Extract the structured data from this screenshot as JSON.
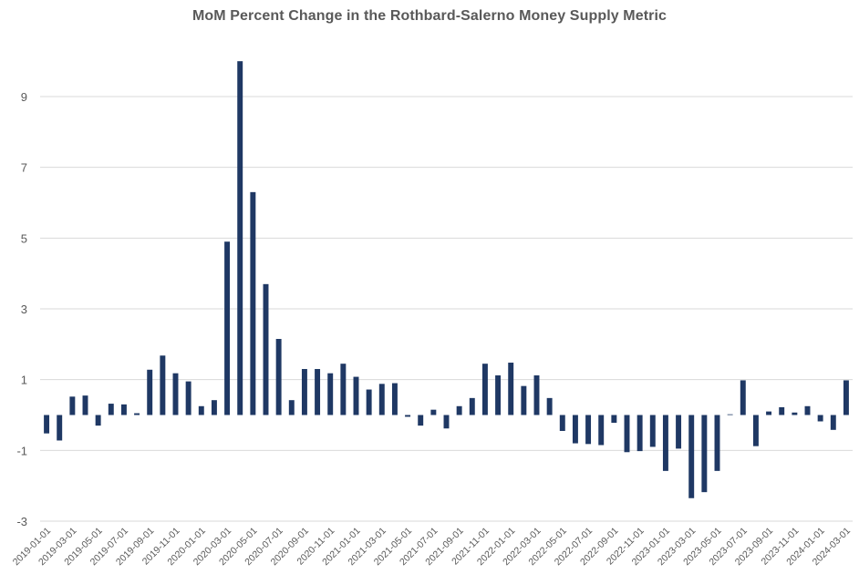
{
  "chart_data": {
    "type": "bar",
    "title": "MoM Percent Change in the Rothbard-Salerno Money Supply Metric",
    "xlabel": "",
    "ylabel": "",
    "ylim": [
      -3,
      11
    ],
    "yticks": [
      9,
      7,
      5,
      3,
      1,
      -1,
      -3
    ],
    "ytick_labels": [
      "9",
      "7",
      "5",
      "3",
      "1",
      "-1",
      "-3"
    ],
    "grid": true,
    "bar_color": "#1f3864",
    "grid_color": "#d9d9d9",
    "text_color": "#595959",
    "x_tick_labels": [
      "2019-01-01",
      "2019-03-01",
      "2019-05-01",
      "2019-07-01",
      "2019-09-01",
      "2019-11-01",
      "2020-01-01",
      "2020-03-01",
      "2020-05-01",
      "2020-07-01",
      "2020-09-01",
      "2020-11-01",
      "2021-01-01",
      "2021-03-01",
      "2021-05-01",
      "2021-07-01",
      "2021-09-01",
      "2021-11-01",
      "2022-01-01",
      "2022-03-01",
      "2022-05-01",
      "2022-07-01",
      "2022-09-01",
      "2022-11-01",
      "2023-01-01",
      "2023-03-01",
      "2023-05-01",
      "2023-07-01",
      "2023-09-01",
      "2023-11-01",
      "2024-01-01",
      "2024-03-01"
    ],
    "categories": [
      "2019-01-01",
      "2019-02-01",
      "2019-03-01",
      "2019-04-01",
      "2019-05-01",
      "2019-06-01",
      "2019-07-01",
      "2019-08-01",
      "2019-09-01",
      "2019-10-01",
      "2019-11-01",
      "2019-12-01",
      "2020-01-01",
      "2020-02-01",
      "2020-03-01",
      "2020-04-01",
      "2020-05-01",
      "2020-06-01",
      "2020-07-01",
      "2020-08-01",
      "2020-09-01",
      "2020-10-01",
      "2020-11-01",
      "2020-12-01",
      "2021-01-01",
      "2021-02-01",
      "2021-03-01",
      "2021-04-01",
      "2021-05-01",
      "2021-06-01",
      "2021-07-01",
      "2021-08-01",
      "2021-09-01",
      "2021-10-01",
      "2021-11-01",
      "2021-12-01",
      "2022-01-01",
      "2022-02-01",
      "2022-03-01",
      "2022-04-01",
      "2022-05-01",
      "2022-06-01",
      "2022-07-01",
      "2022-08-01",
      "2022-09-01",
      "2022-10-01",
      "2022-11-01",
      "2022-12-01",
      "2023-01-01",
      "2023-02-01",
      "2023-03-01",
      "2023-04-01",
      "2023-05-01",
      "2023-06-01",
      "2023-07-01",
      "2023-08-01",
      "2023-09-01",
      "2023-10-01",
      "2023-11-01",
      "2023-12-01",
      "2024-01-01",
      "2024-02-01",
      "2024-03-01"
    ],
    "values": [
      -0.52,
      -0.72,
      0.52,
      0.55,
      -0.3,
      0.32,
      0.3,
      0.05,
      1.28,
      1.68,
      1.18,
      0.95,
      0.25,
      0.42,
      4.9,
      10.0,
      6.3,
      3.7,
      2.15,
      0.42,
      1.3,
      1.3,
      1.18,
      1.45,
      1.08,
      0.72,
      0.88,
      0.9,
      -0.05,
      -0.3,
      0.15,
      -0.38,
      0.25,
      0.48,
      1.45,
      1.12,
      1.48,
      0.82,
      1.12,
      0.48,
      -0.45,
      -0.8,
      -0.82,
      -0.85,
      -0.22,
      -1.05,
      -1.02,
      -0.9,
      -1.58,
      -0.95,
      -2.35,
      -2.18,
      -1.58,
      0.02,
      0.98,
      -0.88,
      0.1,
      0.22,
      0.07,
      0.25,
      -0.18,
      -0.42,
      0.98
    ]
  }
}
